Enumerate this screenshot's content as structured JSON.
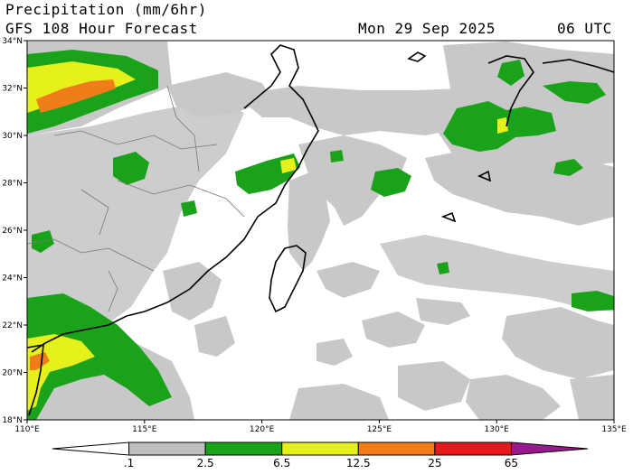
{
  "header": {
    "title": "Precipitation (mm/6hr)",
    "subtitle": "GFS 108 Hour Forecast",
    "valid_date": "Mon 29 Sep 2025",
    "valid_time": "06 UTC"
  },
  "map": {
    "lon_range": [
      110,
      135
    ],
    "lat_range": [
      18,
      34
    ],
    "lat_labels": [
      "18°N",
      "20°N",
      "22°N",
      "24°N",
      "26°N",
      "28°N",
      "30°N",
      "32°N",
      "34°N"
    ],
    "lon_labels": [
      "110°E",
      "115°E",
      "120°E",
      "125°E",
      "130°E",
      "135°E"
    ]
  },
  "legend": {
    "colors": [
      "#ffffff",
      "#c0c0c0",
      "#1aa31a",
      "#e6f01a",
      "#f07d1a",
      "#e61a1a",
      "#961a8c"
    ],
    "ticks": [
      ".1",
      "2.5",
      "6.5",
      "12.5",
      "25",
      "65"
    ]
  }
}
